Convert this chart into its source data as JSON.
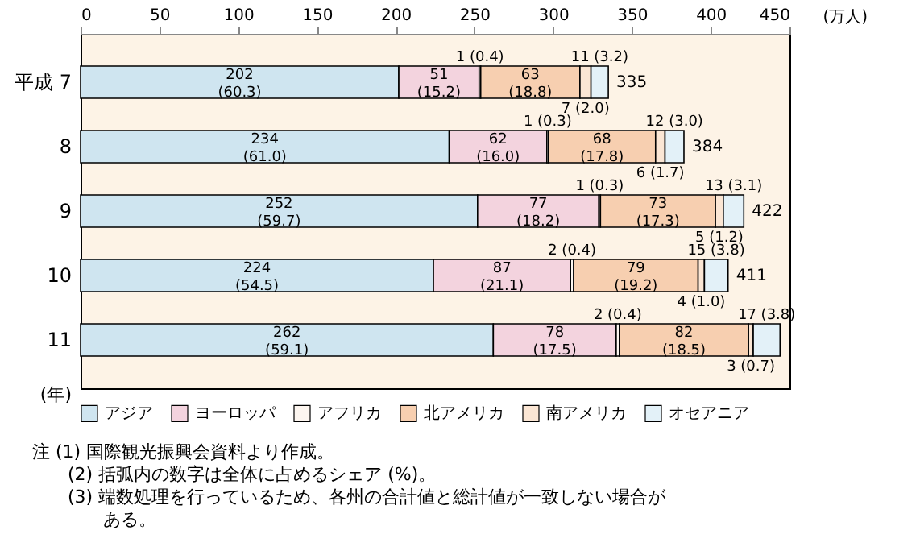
{
  "chart_data": {
    "type": "bar",
    "orientation": "horizontal",
    "stacked": true,
    "categories": [
      "平成 7",
      "8",
      "9",
      "10",
      "11"
    ],
    "xlabel": "(万人)",
    "ylabel": "(年)",
    "xlim": [
      0,
      450
    ],
    "xticks": [
      0,
      50,
      100,
      150,
      200,
      250,
      300,
      350,
      400,
      450
    ],
    "grid": false,
    "legend": "bottom",
    "series": [
      {
        "name": "アジア",
        "color": "#cfe5f0",
        "values": [
          202,
          234,
          252,
          224,
          262
        ],
        "value_labels": [
          "202\n(60.3)",
          "234\n(61.0)",
          "252\n(59.7)",
          "224\n(54.5)",
          "262\n(59.1)"
        ]
      },
      {
        "name": "ヨーロッパ",
        "color": "#f3d3de",
        "values": [
          51,
          62,
          77,
          87,
          78
        ],
        "value_labels": [
          "51\n(15.2)",
          "62\n(16.0)",
          "77\n(18.2)",
          "87\n(21.1)",
          "78\n(17.5)"
        ]
      },
      {
        "name": "アフリカ",
        "color": "#fdf6f0",
        "values": [
          1,
          1,
          1,
          2,
          2
        ],
        "value_labels": [
          "1\n(0.4)",
          "1\n(0.3)",
          "1\n(0.3)",
          "2\n(0.4)",
          "2\n(0.4)"
        ]
      },
      {
        "name": "北アメリカ",
        "color": "#f7cfb0",
        "values": [
          63,
          68,
          73,
          79,
          82
        ],
        "value_labels": [
          "63\n(18.8)",
          "68\n(17.8)",
          "73\n(17.3)",
          "79\n(19.2)",
          "82\n(18.5)"
        ]
      },
      {
        "name": "南アメリカ",
        "color": "#fbe6d4",
        "values": [
          7,
          6,
          5,
          4,
          3
        ],
        "value_labels": [
          "7\n(2.0)",
          "6\n(1.7)",
          "5\n(1.2)",
          "4\n(1.0)",
          "3\n(0.7)"
        ]
      },
      {
        "name": "オセアニア",
        "color": "#e3f1f8",
        "values": [
          11,
          12,
          13,
          15,
          17
        ],
        "value_labels": [
          "11\n(3.2)",
          "12\n(3.0)",
          "13\n(3.1)",
          "15\n(3.8)",
          "17\n(3.8)"
        ]
      }
    ],
    "totals": [
      "335",
      "384",
      "422",
      "411",
      null
    ],
    "annotations": [
      "注 (1) 国際観光振興会資料より作成。",
      "(2) 括弧内の数字は全体に占めるシェア (%)。",
      "(3) 端数処理を行っているため、各州の合計値と総計値が一致しない場合がある。"
    ]
  }
}
